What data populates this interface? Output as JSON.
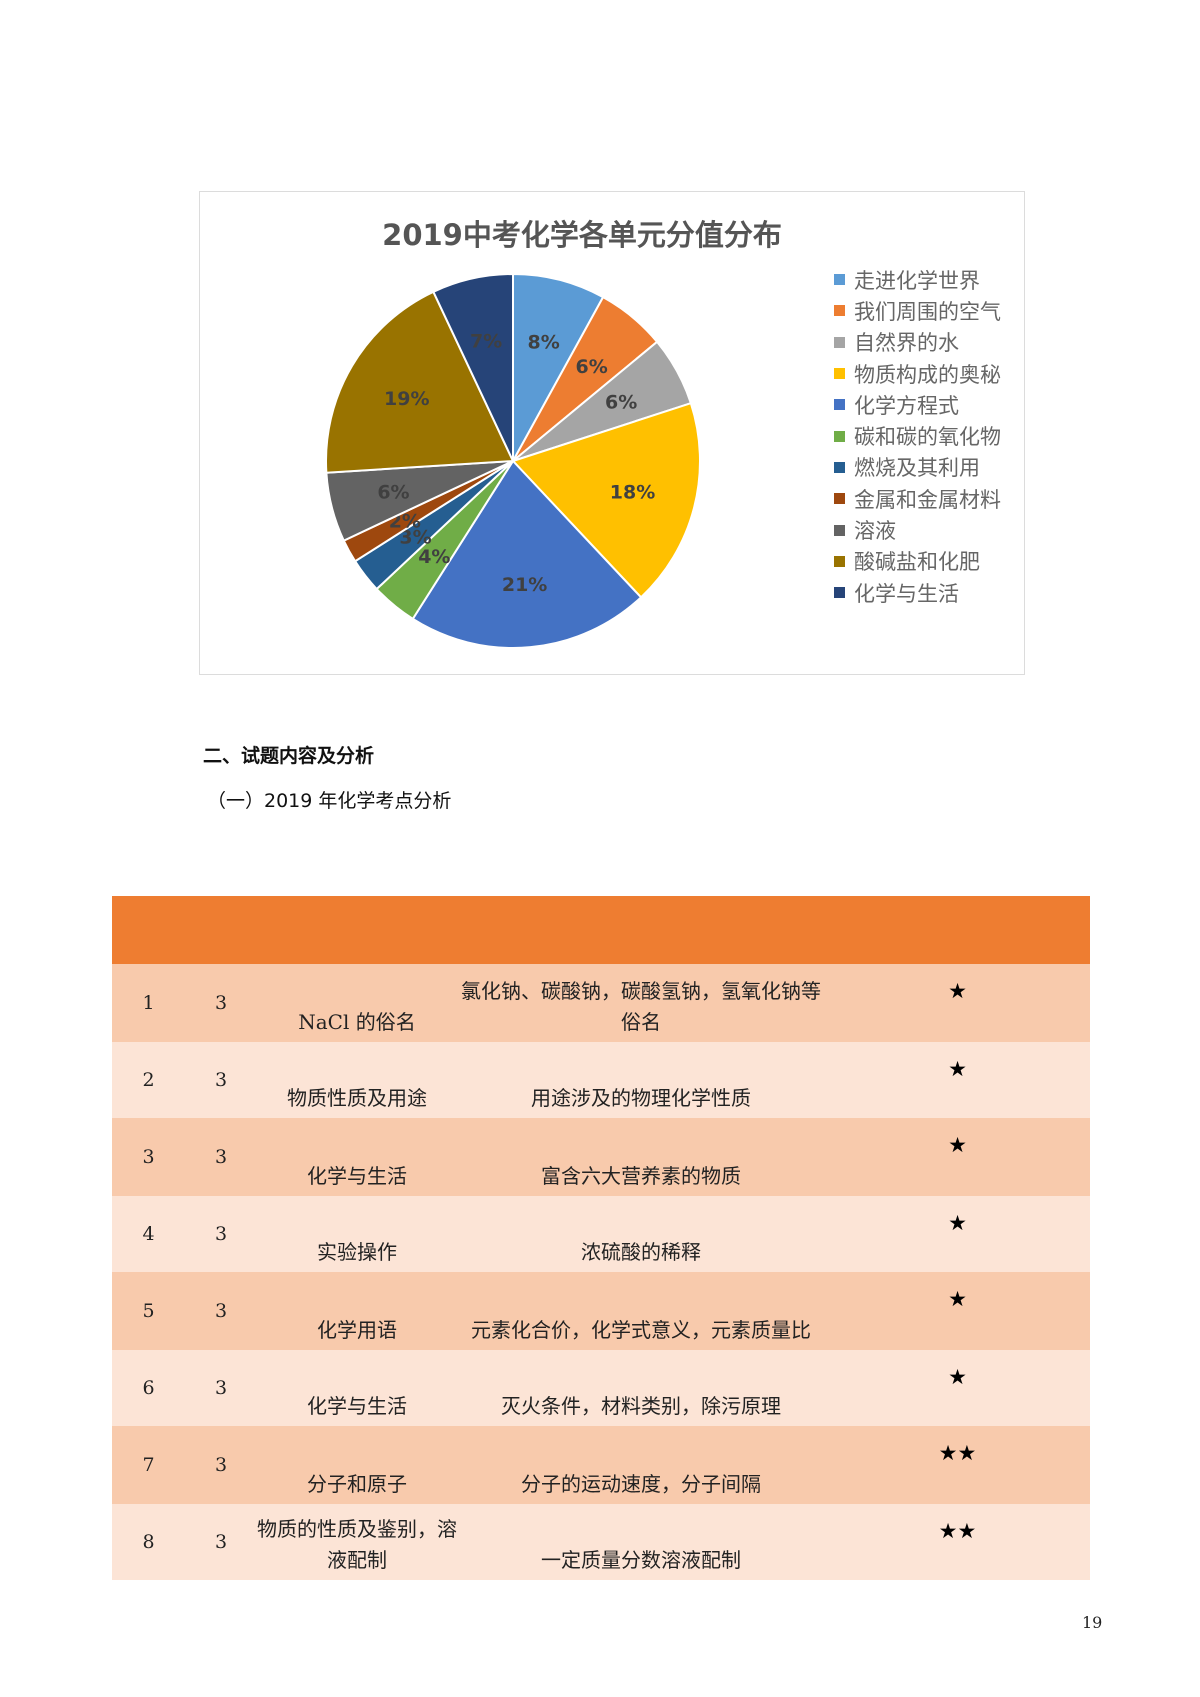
{
  "chart_data": {
    "type": "pie",
    "title": "2019中考化学各单元分值分布",
    "legend_position": "right",
    "categories": [
      "走进化学世界",
      "我们周围的空气",
      "自然界的水",
      "物质构成的奥秘",
      "化学方程式",
      "碳和碳的氧化物",
      "燃烧及其利用",
      "金属和金属材料",
      "溶液",
      "酸碱盐和化肥",
      "化学与生活"
    ],
    "values": [
      8,
      6,
      6,
      18,
      21,
      4,
      3,
      2,
      6,
      19,
      7
    ],
    "labels": [
      "8%",
      "6%",
      "6%",
      "18%",
      "21%",
      "4%",
      "3%",
      "2%",
      "6%",
      "19%",
      "7%"
    ],
    "colors": [
      "#5b9bd5",
      "#ed7d31",
      "#a5a5a5",
      "#ffc000",
      "#4472c4",
      "#70ad47",
      "#255e91",
      "#9e480e",
      "#636363",
      "#997300",
      "#264478"
    ]
  },
  "section_heading": "二、试题内容及分析",
  "subsection_heading": "（一）2019 年化学考点分析",
  "table": {
    "rows": [
      {
        "no": "1",
        "score": "3",
        "topic": "NaCl 的俗名",
        "content": "氯化钠、碳酸钠，碳酸氢钠，氢氧化钠等俗名",
        "difficulty": "★"
      },
      {
        "no": "2",
        "score": "3",
        "topic": "物质性质及用途",
        "content": "用途涉及的物理化学性质",
        "difficulty": "★"
      },
      {
        "no": "3",
        "score": "3",
        "topic": "化学与生活",
        "content": "富含六大营养素的物质",
        "difficulty": "★"
      },
      {
        "no": "4",
        "score": "3",
        "topic": "实验操作",
        "content": "浓硫酸的稀释",
        "difficulty": "★"
      },
      {
        "no": "5",
        "score": "3",
        "topic": "化学用语",
        "content": "元素化合价，化学式意义，元素质量比",
        "difficulty": "★"
      },
      {
        "no": "6",
        "score": "3",
        "topic": "化学与生活",
        "content": "灭火条件，材料类别，除污原理",
        "difficulty": "★"
      },
      {
        "no": "7",
        "score": "3",
        "topic": "分子和原子",
        "content": "分子的运动速度，分子间隔",
        "difficulty": "★★"
      },
      {
        "no": "8",
        "score": "3",
        "topic": "物质的性质及鉴别，溶液配制",
        "content": "一定质量分数溶液配制",
        "difficulty": "★★"
      }
    ]
  },
  "page_number": "19"
}
